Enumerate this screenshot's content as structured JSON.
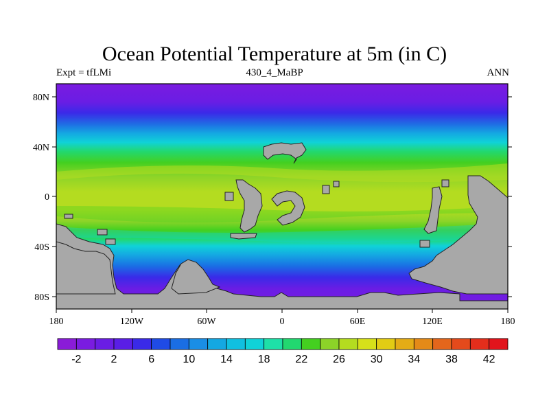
{
  "title": "Ocean Potential Temperature at 5m (in C)",
  "subtitle_left": "Expt = tfLMi",
  "subtitle_center": "430_4_MaBP",
  "subtitle_right": "ANN",
  "lat_ticks": [
    "80N",
    "40N",
    "0",
    "40S",
    "80S"
  ],
  "lon_ticks": [
    "180",
    "120W",
    "60W",
    "0",
    "60E",
    "120E",
    "180"
  ],
  "colorbar": {
    "colors": [
      "#8a1cd8",
      "#7a1ce0",
      "#6a1de4",
      "#5a1ee6",
      "#3a2ae8",
      "#1f4be6",
      "#1a6ee4",
      "#1a8ee6",
      "#14a8e2",
      "#10c0e0",
      "#10d2d8",
      "#1ee0a8",
      "#22d870",
      "#44d020",
      "#8cd428",
      "#b4dc20",
      "#d6e01a",
      "#e2cc14",
      "#e4ac16",
      "#e48a18",
      "#e4661c",
      "#e44a1c",
      "#e42e1c",
      "#e2141c"
    ],
    "labels": [
      "-2",
      "2",
      "6",
      "10",
      "14",
      "18",
      "22",
      "26",
      "30",
      "34",
      "38",
      "42"
    ]
  },
  "colors": {
    "land": "#a8a8a8"
  }
}
